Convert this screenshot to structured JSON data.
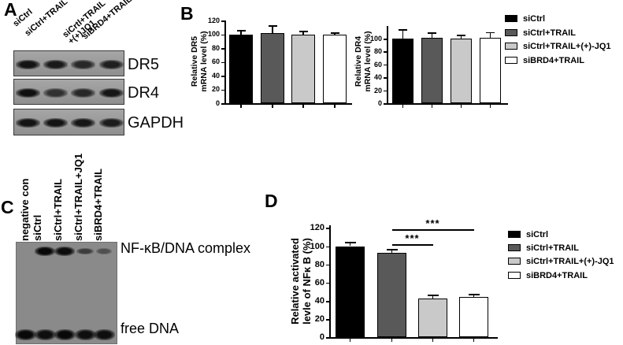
{
  "panels": {
    "a": "A",
    "b": "B",
    "c": "C",
    "d": "D"
  },
  "panel_a": {
    "lane_labels": [
      {
        "lines": [
          "siCtrl"
        ]
      },
      {
        "lines": [
          "siCtrl+TRAIL"
        ]
      },
      {
        "lines": [
          "siCrtl+TRAIL",
          "+(+)JQ1"
        ]
      },
      {
        "lines": [
          "siBRD4+TRAIL"
        ]
      }
    ],
    "blot_rows": [
      {
        "label": "DR5",
        "band_intensities": [
          0.92,
          0.88,
          0.78,
          0.84
        ]
      },
      {
        "label": "DR4",
        "band_intensities": [
          0.95,
          0.72,
          0.78,
          0.9
        ]
      },
      {
        "label": "GAPDH",
        "band_intensities": [
          0.92,
          0.92,
          0.9,
          0.86
        ]
      }
    ]
  },
  "panel_c": {
    "lane_labels": [
      "negative con",
      "siCtrl",
      "siCtrl+TRAIL",
      "siCtrl+TRAIL+JQ1",
      "siBRD4+TRAIL"
    ],
    "complex_label": "NF-κB/DNA complex",
    "free_label": "free DNA",
    "top_band_intensities": [
      0,
      1.0,
      0.95,
      0.5,
      0.32
    ],
    "bottom_band_intensities": [
      1,
      0.95,
      1,
      0.95,
      0.95
    ]
  },
  "legend": {
    "entries": [
      {
        "label": "siCtrl",
        "color": "#000000"
      },
      {
        "label": "siCtrl+TRAIL",
        "color": "#595959"
      },
      {
        "label": "siCtrl+TRAIL+(+)-JQ1",
        "color": "#c9c9c9"
      },
      {
        "label": "siBRD4+TRAIL",
        "color": "#ffffff"
      }
    ]
  },
  "chart_data": [
    {
      "id": "dr5",
      "type": "bar",
      "title": "",
      "ylabel_lines": [
        "Relative DR5",
        "mRNA level (%)"
      ],
      "categories": [
        "siCtrl",
        "siCtrl+TRAIL",
        "siCtrl+TRAIL+(+)-JQ1",
        "siBRD4+TRAIL"
      ],
      "values": [
        100,
        102,
        100,
        99
      ],
      "errors": [
        5,
        10,
        4,
        3
      ],
      "ylim": [
        0,
        120
      ],
      "yticks": [
        0,
        20,
        40,
        60,
        80,
        100,
        120
      ],
      "bar_colors": [
        "#000000",
        "#595959",
        "#c9c9c9",
        "#ffffff"
      ],
      "grid": false,
      "legend_position": "right"
    },
    {
      "id": "dr4",
      "type": "bar",
      "title": "",
      "ylabel_lines": [
        "Relative DR4",
        "mRNA level (%)"
      ],
      "categories": [
        "siCtrl",
        "siCtrl+TRAIL",
        "siCtrl+TRAIL+(+)-JQ1",
        "siBRD4+TRAIL"
      ],
      "values": [
        100,
        101,
        100,
        101
      ],
      "errors": [
        13,
        7,
        5,
        8
      ],
      "ylim": [
        0,
        115
      ],
      "yticks": [
        0,
        20,
        40,
        60,
        80,
        100
      ],
      "bar_colors": [
        "#000000",
        "#595959",
        "#c9c9c9",
        "#ffffff"
      ],
      "grid": false,
      "legend_position": "right"
    },
    {
      "id": "nfkb",
      "type": "bar",
      "title": "",
      "ylabel_lines": [
        "Relative activated",
        "levle of NFκ B (%)"
      ],
      "categories": [
        "siCtrl",
        "siCtrl+TRAIL",
        "siCtrl+TRAIL+(+)-JQ1",
        "siBRD4+TRAIL"
      ],
      "values": [
        100,
        93,
        42,
        44
      ],
      "errors": [
        4,
        3,
        4,
        3
      ],
      "ylim": [
        0,
        120
      ],
      "yticks": [
        0,
        20,
        40,
        60,
        80,
        100,
        120
      ],
      "bar_colors": [
        "#000000",
        "#595959",
        "#c9c9c9",
        "#ffffff"
      ],
      "grid": false,
      "legend_position": "right",
      "significance": [
        {
          "from": 1,
          "to": 2,
          "label": "***"
        },
        {
          "from": 1,
          "to": 3,
          "label": "***"
        }
      ]
    }
  ]
}
